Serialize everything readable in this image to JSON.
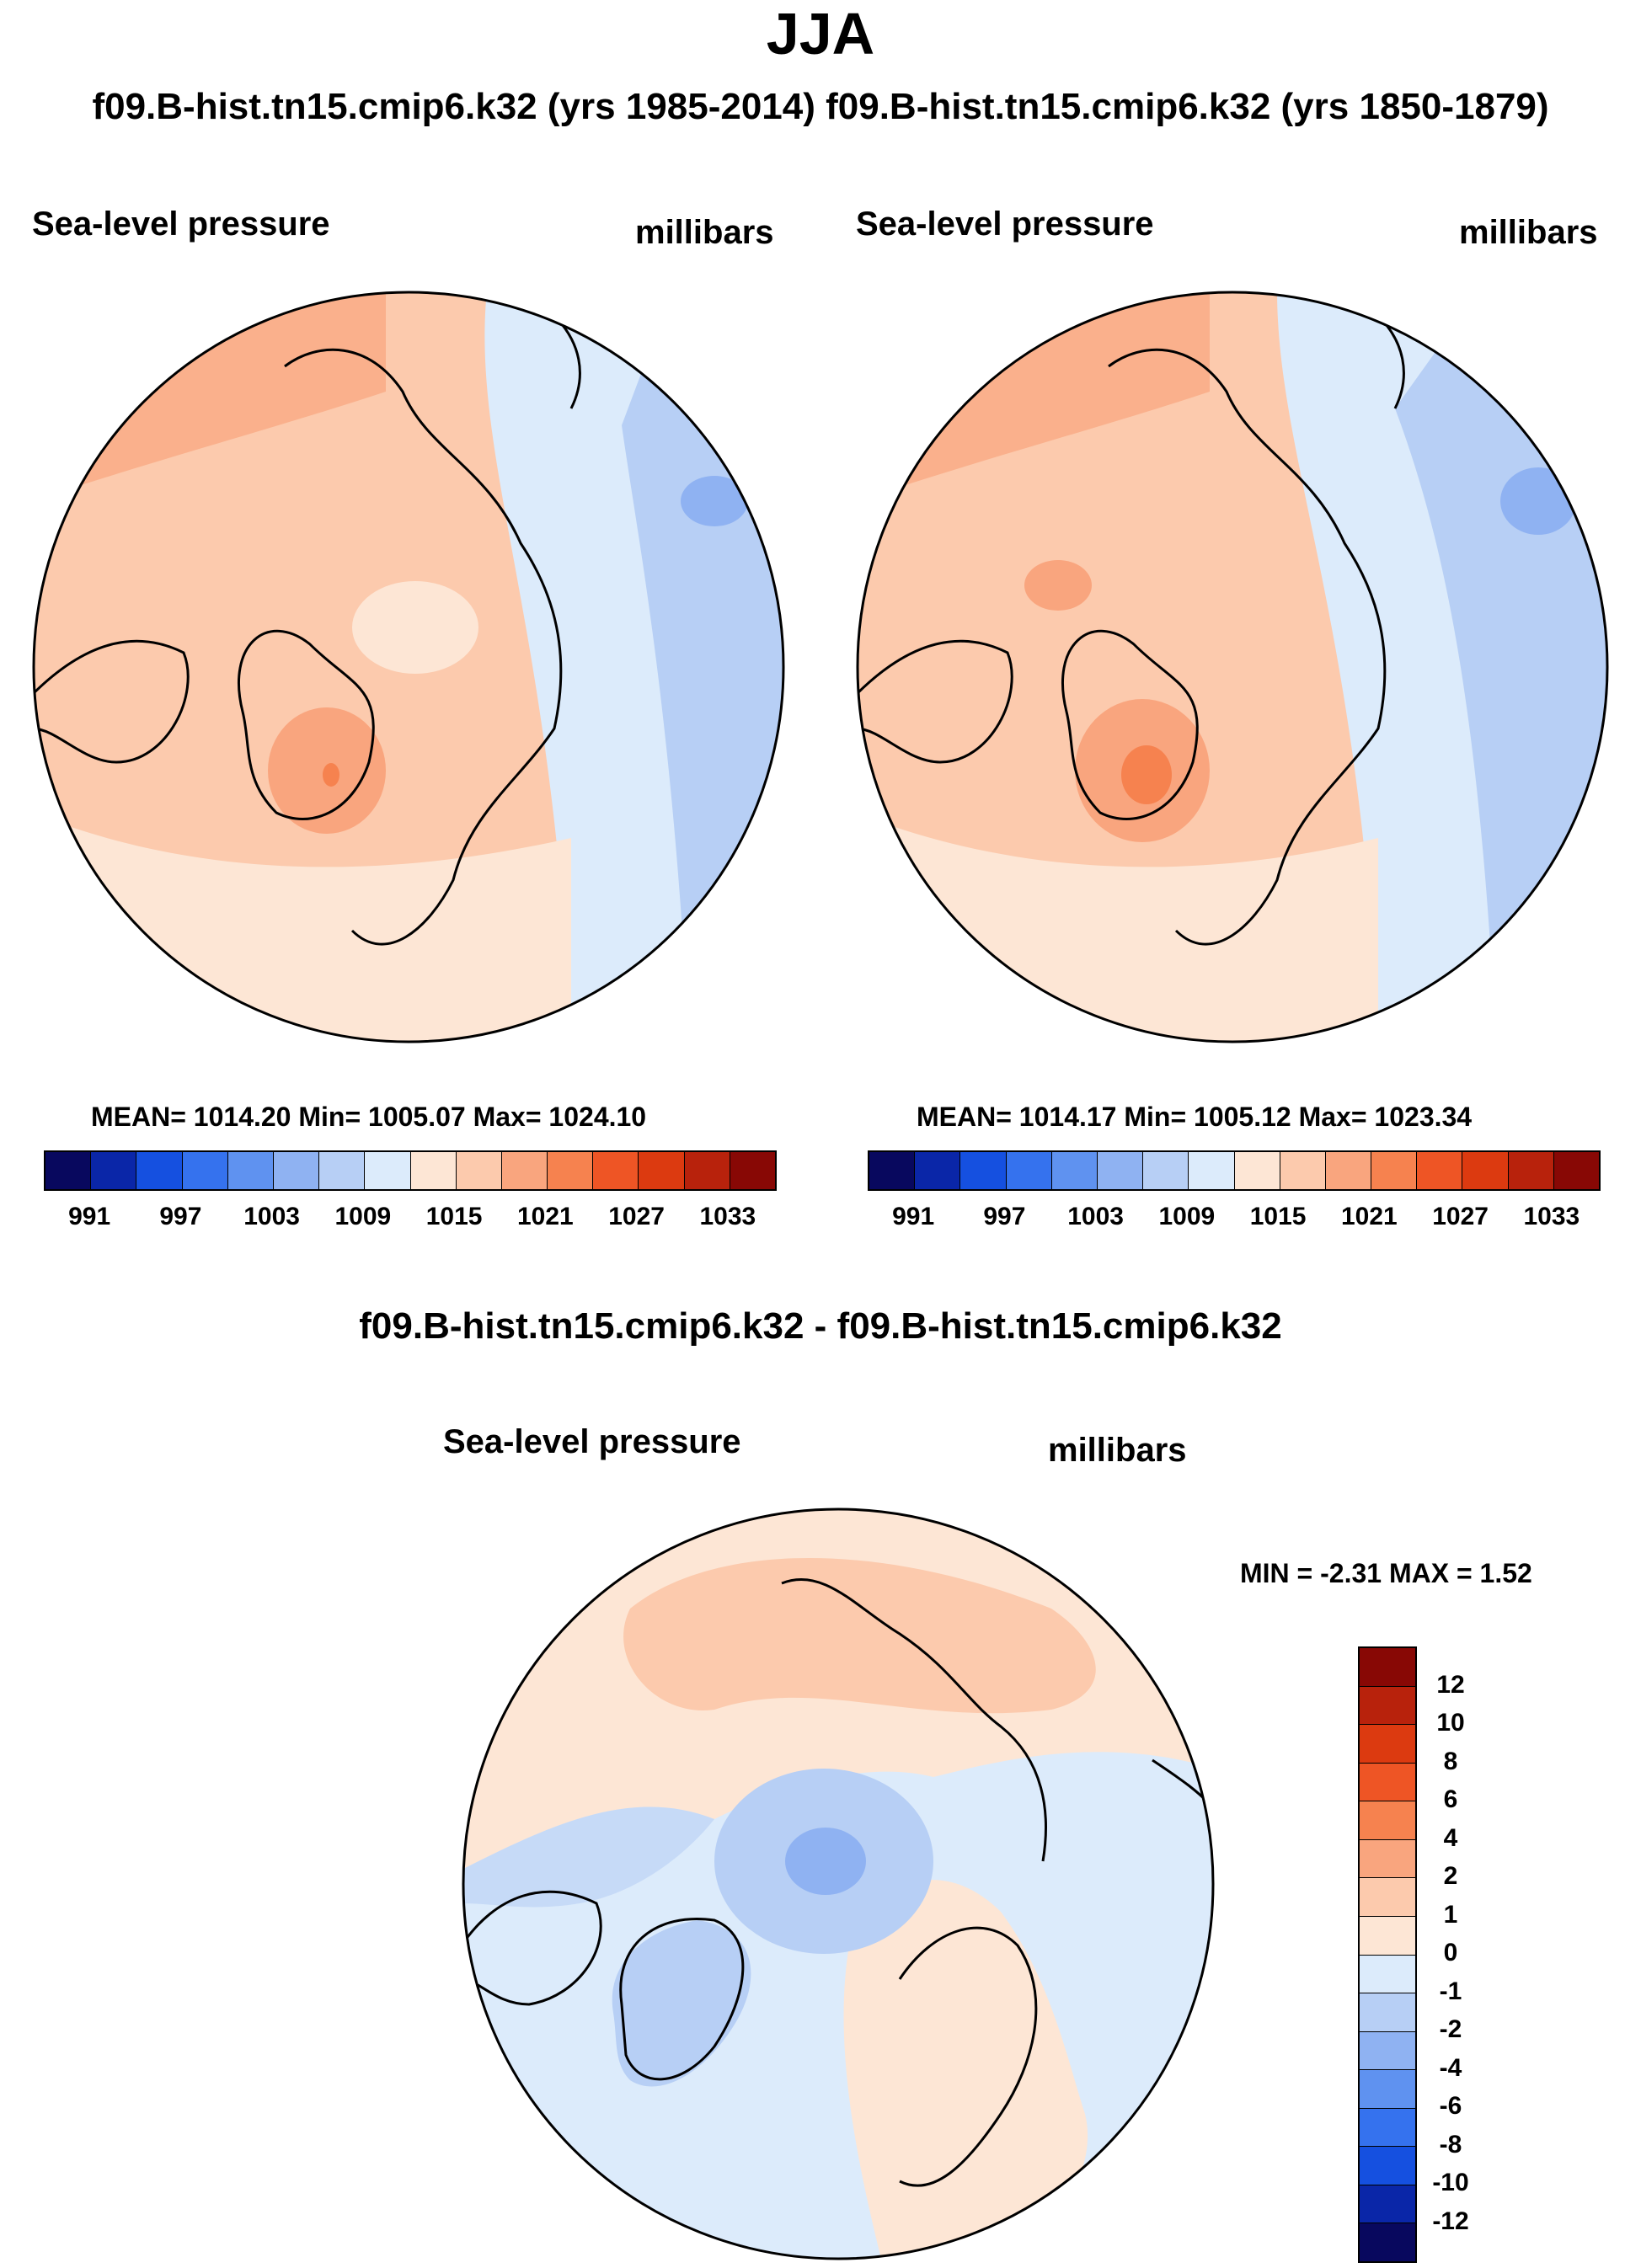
{
  "figure": {
    "season": "JJA",
    "top_title": "f09.B-hist.tn15.cmip6.k32 (yrs 1985-2014)  f09.B-hist.tn15.cmip6.k32 (yrs 1850-1879)",
    "diff_title": "f09.B-hist.tn15.cmip6.k32 - f09.B-hist.tn15.cmip6.k32"
  },
  "panels": [
    {
      "variable": "Sea-level pressure",
      "units": "millibars",
      "stats": "MEAN= 1014.20  Min= 1005.07  Max= 1024.10"
    },
    {
      "variable": "Sea-level pressure",
      "units": "millibars",
      "stats": "MEAN= 1014.17  Min= 1005.12  Max= 1023.34"
    },
    {
      "variable": "Sea-level pressure",
      "units": "millibars",
      "stats": "MIN =  -2.31 MAX =   1.52"
    }
  ],
  "colorbar_abs": {
    "labels": [
      "991",
      "997",
      "1003",
      "1009",
      "1015",
      "1021",
      "1027",
      "1033"
    ],
    "colors": [
      "#08085e",
      "#0a26a8",
      "#1550e0",
      "#3572ee",
      "#5f92f0",
      "#8fb2f2",
      "#b7cff5",
      "#dcebfb",
      "#fde6d5",
      "#fccaad",
      "#f9a57e",
      "#f6824f",
      "#ee5525",
      "#dc3a10",
      "#b8220c",
      "#880805"
    ]
  },
  "colorbar_diff": {
    "labels": [
      "12",
      "10",
      "8",
      "6",
      "4",
      "2",
      "1",
      "0",
      "-1",
      "-2",
      "-4",
      "-6",
      "-8",
      "-10",
      "-12"
    ],
    "colors": [
      "#880805",
      "#b8220c",
      "#dc3a10",
      "#ee5525",
      "#f6824f",
      "#f9a57e",
      "#fccaad",
      "#fde6d5",
      "#dcebfb",
      "#b7cff5",
      "#8fb2f2",
      "#5f92f0",
      "#3572ee",
      "#1550e0",
      "#0a26a8",
      "#08085e"
    ]
  },
  "map_colors": {
    "ocean_outline": "#000000",
    "c1015": "#fde6d5",
    "c1018": "#fccaad",
    "c1021": "#f9a57e",
    "c1024": "#f6824f",
    "c1012": "#dcebfb",
    "c1009": "#b7cff5",
    "c1006": "#8fb2f2",
    "d_pos1": "#fde6d5",
    "d_pos2": "#fccaad",
    "d_neg1": "#dcebfb",
    "d_neg2": "#b7cff5",
    "d_neg3": "#8fb2f2"
  }
}
